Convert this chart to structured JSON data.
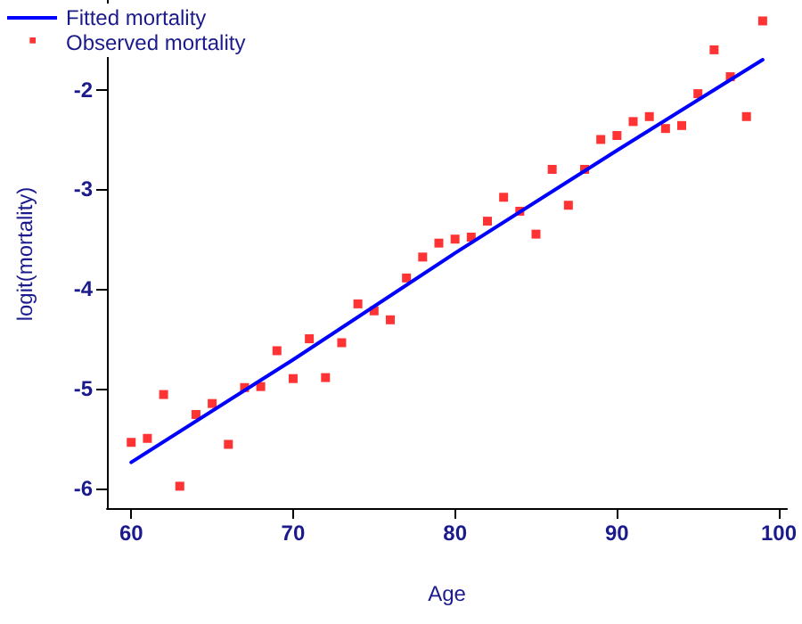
{
  "chart_data": {
    "type": "scatter",
    "xlabel": "Age",
    "ylabel": "logit(mortality)",
    "xlim": [
      58.5,
      100.5
    ],
    "ylim": [
      -6.2,
      -1.1
    ],
    "xticks": [
      60,
      70,
      80,
      90,
      100
    ],
    "yticks": [
      -6,
      -5,
      -4,
      -3,
      -2
    ],
    "grid": false,
    "legend": "top left",
    "series": [
      {
        "name": "Fitted mortality",
        "type": "line",
        "color": "#0000ff",
        "marker": "none",
        "line_style": "solid",
        "x": [
          60,
          70,
          80,
          90,
          99
        ],
        "values": [
          -5.74,
          -4.71,
          -3.64,
          -2.61,
          -1.7
        ]
      },
      {
        "name": "Observed mortality",
        "color": "#ff0000",
        "marker": "square",
        "x": [
          60,
          61,
          62,
          63,
          64,
          65,
          66,
          67,
          68,
          69,
          70,
          71,
          72,
          73,
          74,
          75,
          76,
          77,
          78,
          79,
          80,
          81,
          82,
          83,
          84,
          85,
          86,
          87,
          88,
          89,
          90,
          91,
          92,
          93,
          94,
          95,
          96,
          97,
          98,
          99
        ],
        "values": [
          -5.54,
          -5.5,
          -5.06,
          -5.98,
          -5.26,
          -5.15,
          -5.56,
          -4.99,
          -4.98,
          -4.62,
          -4.9,
          -4.5,
          -4.89,
          -4.54,
          -4.15,
          -4.22,
          -4.31,
          -3.89,
          -3.68,
          -3.54,
          -3.5,
          -3.48,
          -3.32,
          -3.08,
          -3.22,
          -3.45,
          -2.8,
          -3.16,
          -2.8,
          -2.5,
          -2.46,
          -2.32,
          -2.27,
          -2.39,
          -2.36,
          -2.04,
          -1.6,
          -1.87,
          -2.27,
          -1.31
        ]
      }
    ]
  }
}
